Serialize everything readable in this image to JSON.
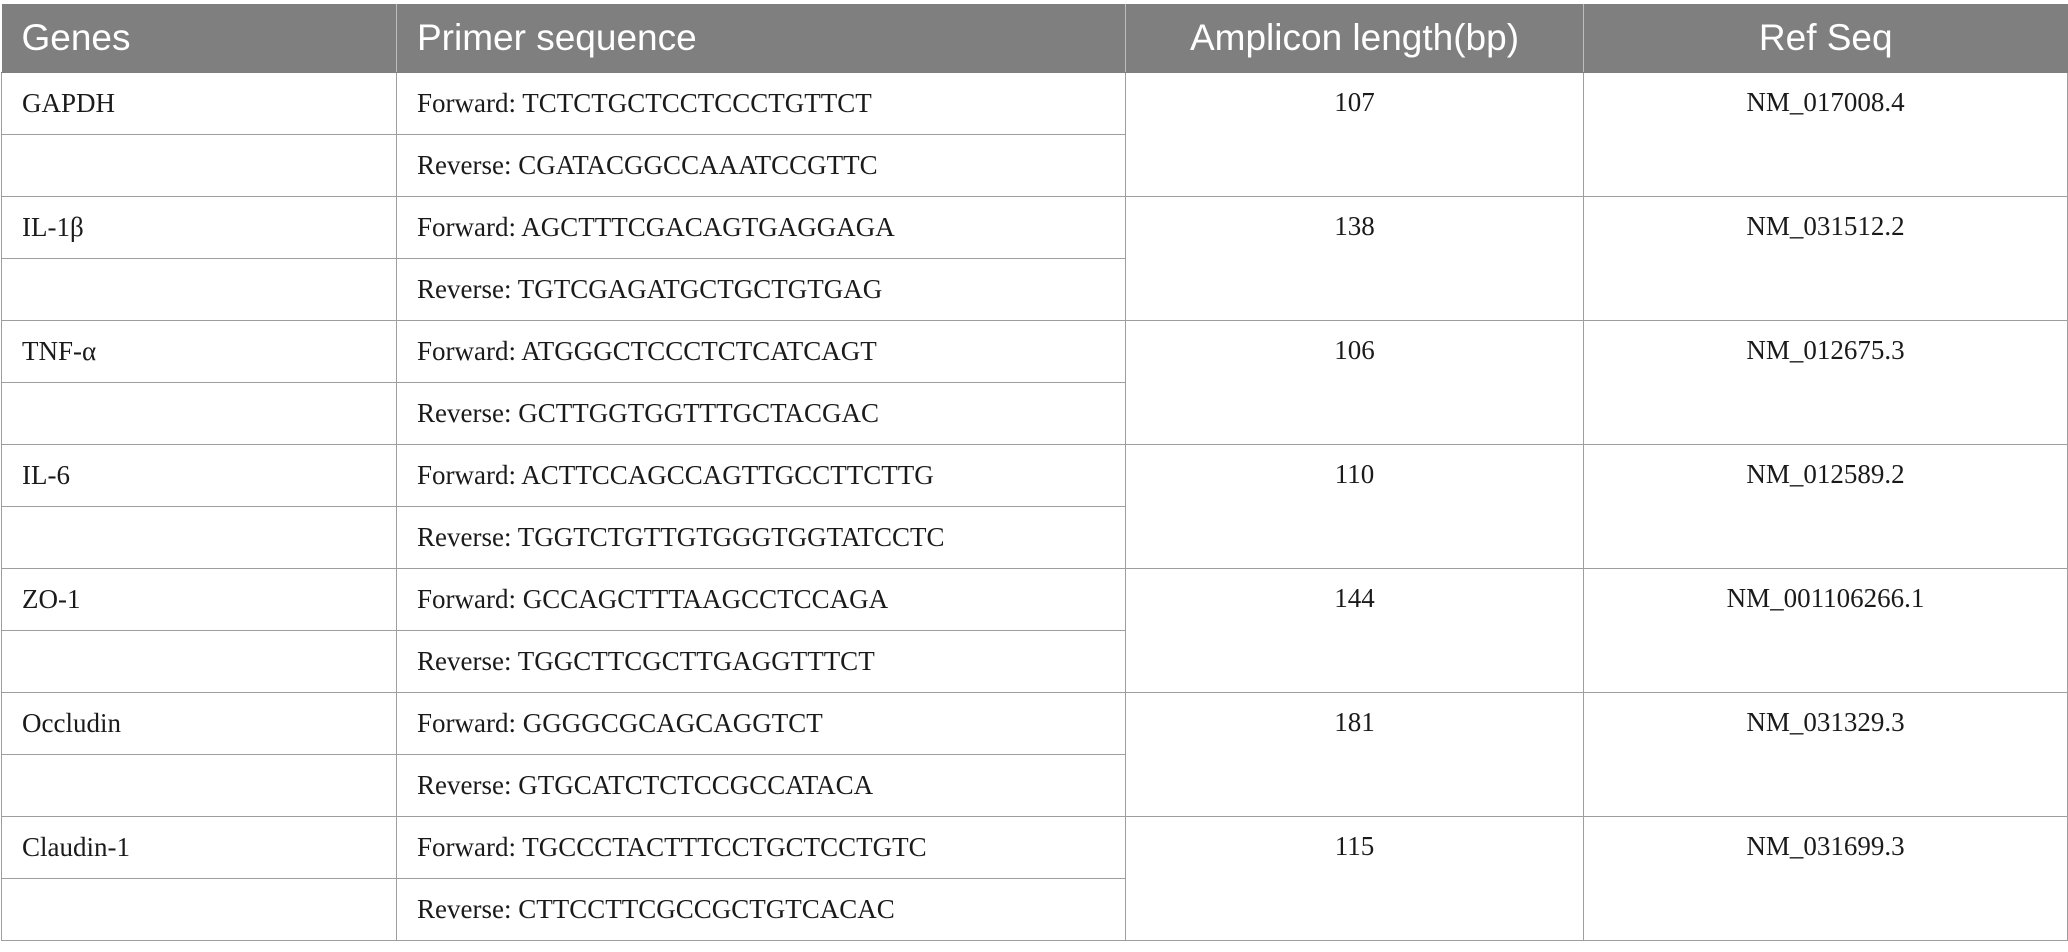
{
  "table": {
    "headers": [
      "Genes",
      "Primer sequence",
      "Amplicon length(bp)",
      "Ref Seq"
    ],
    "rows": [
      {
        "gene": "GAPDH",
        "forward": "Forward: TCTCTGCTCCTCCCTGTTCT",
        "reverse": "Reverse: CGATACGGCCAAATCCGTTC",
        "amplicon": "107",
        "refseq": "NM_017008.4"
      },
      {
        "gene": "IL-1β",
        "forward": "Forward: AGCTTTCGACAGTGAGGAGA",
        "reverse": "Reverse: TGTCGAGATGCTGCTGTGAG",
        "amplicon": "138",
        "refseq": "NM_031512.2"
      },
      {
        "gene": "TNF-α",
        "forward": "Forward: ATGGGCTCCCTCTCATCAGT",
        "reverse": "Reverse: GCTTGGTGGTTTGCTACGAC",
        "amplicon": "106",
        "refseq": "NM_012675.3"
      },
      {
        "gene": "IL-6",
        "forward": "Forward: ACTTCCAGCCAGTTGCCTTCTTG",
        "reverse": "Reverse: TGGTCTGTTGTGGGTGGTATCCTC",
        "amplicon": "110",
        "refseq": "NM_012589.2"
      },
      {
        "gene": "ZO-1",
        "forward": "Forward: GCCAGCTTTAAGCCTCCAGA",
        "reverse": "Reverse: TGGCTTCGCTTGAGGTTTCT",
        "amplicon": "144",
        "refseq": "NM_001106266.1"
      },
      {
        "gene": "Occludin",
        "forward": "Forward: GGGGCGCAGCAGGTCT",
        "reverse": "Reverse: GTGCATCTCTCCGCCATACA",
        "amplicon": "181",
        "refseq": "NM_031329.3"
      },
      {
        "gene": "Claudin-1",
        "forward": "Forward: TGCCCTACTTTCCTGCTCCTGTC",
        "reverse": "Reverse: CTTCCTTCGCCGCTGTCACAC",
        "amplicon": "115",
        "refseq": "NM_031699.3"
      }
    ]
  }
}
